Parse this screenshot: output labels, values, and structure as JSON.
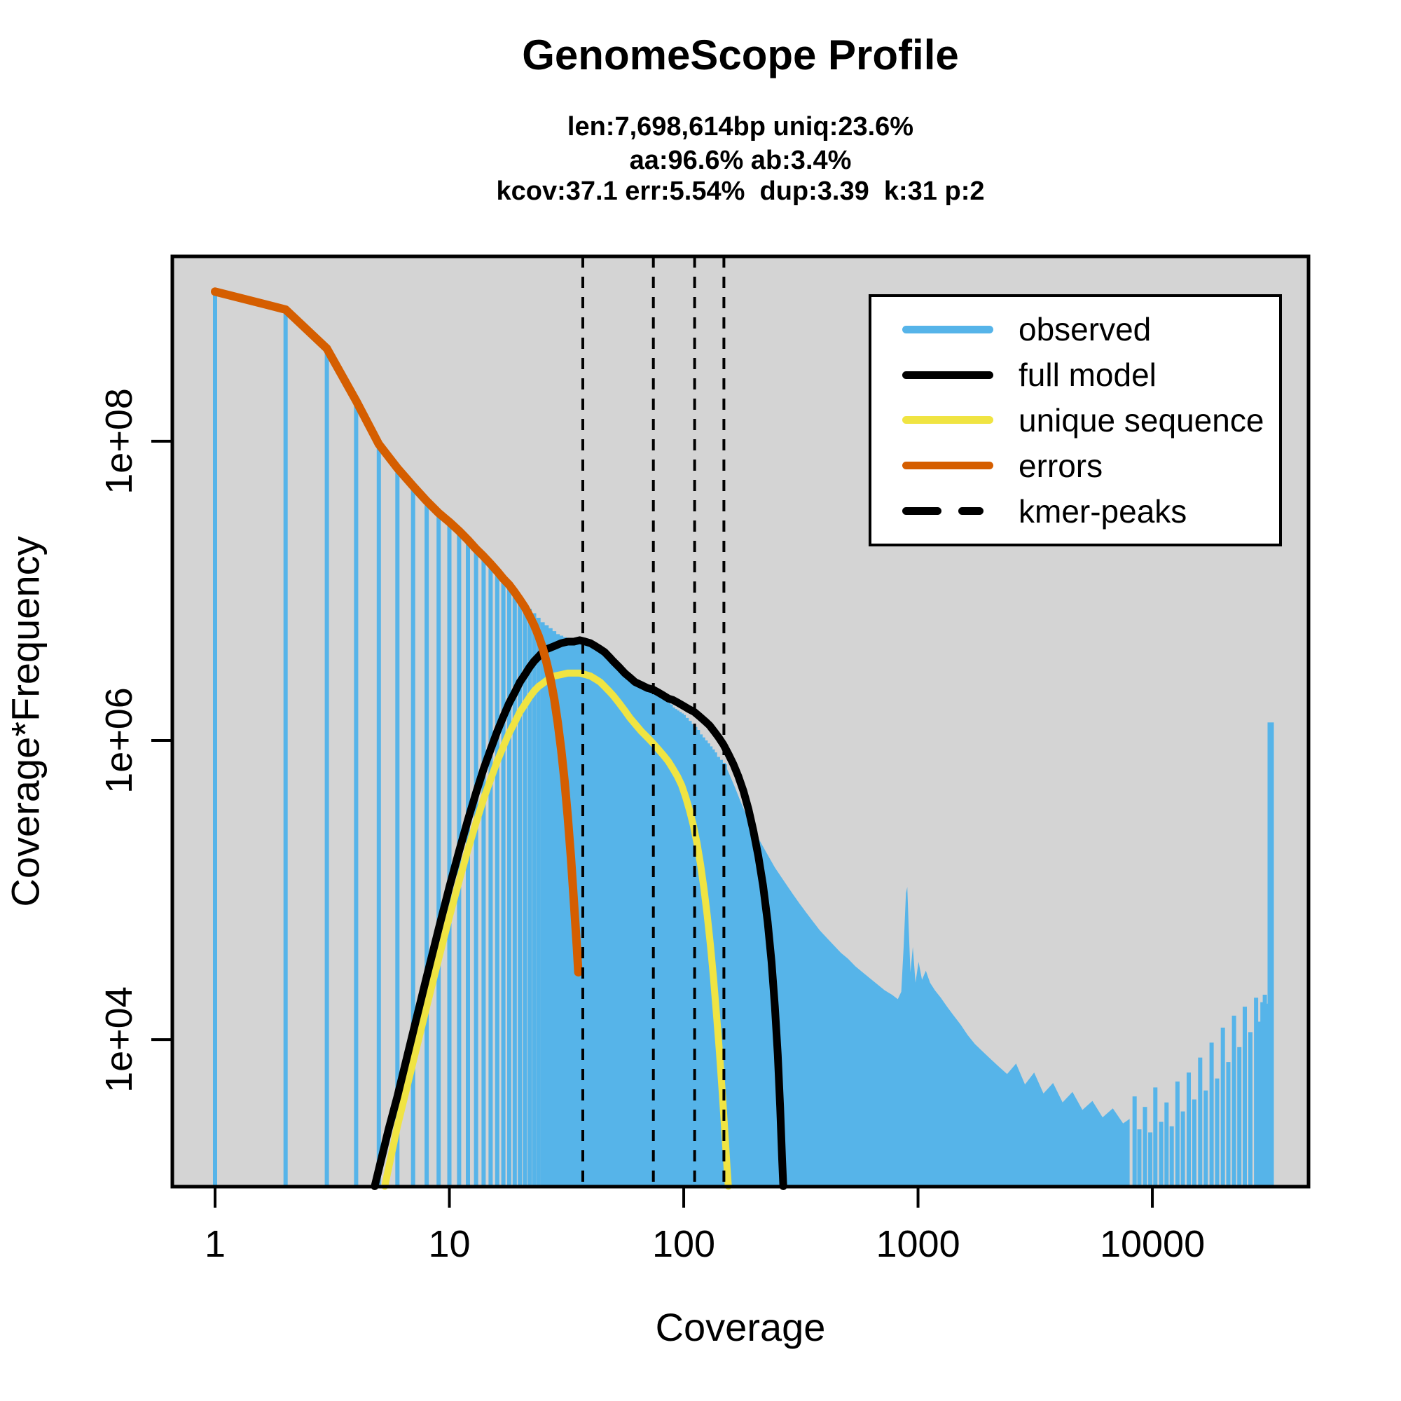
{
  "header": {
    "title": "GenomeScope Profile",
    "subtitle_line1": "len:7,698,614bp uniq:23.6%",
    "subtitle_line2": "aa:96.6% ab:3.4%",
    "subtitle_line3": "kcov:37.1 err:5.54%  dup:3.39  k:31 p:2"
  },
  "axes": {
    "x_label": "Coverage",
    "y_label": "Coverage*Frequency",
    "x_ticks": [
      {
        "value": 1,
        "label": "1"
      },
      {
        "value": 10,
        "label": "10"
      },
      {
        "value": 100,
        "label": "100"
      },
      {
        "value": 1000,
        "label": "1000"
      },
      {
        "value": 10000,
        "label": "10000"
      }
    ],
    "y_ticks": [
      {
        "value": 10000,
        "label": "1e+04"
      },
      {
        "value": 1000000,
        "label": "1e+06"
      },
      {
        "value": 100000000,
        "label": "1e+08"
      }
    ]
  },
  "legend": {
    "items": [
      {
        "label": "observed",
        "color": "#56B4E9",
        "style": "solid"
      },
      {
        "label": "full model",
        "color": "#000000",
        "style": "solid"
      },
      {
        "label": "unique sequence",
        "color": "#F0E442",
        "style": "solid"
      },
      {
        "label": "errors",
        "color": "#D55E00",
        "style": "solid"
      },
      {
        "label": "kmer-peaks",
        "color": "#000000",
        "style": "dashed"
      }
    ]
  },
  "colors": {
    "panel_bg": "#D4D4D4",
    "outer_bg": "#FFFFFF",
    "observed": "#56B4E9",
    "full_model": "#000000",
    "unique": "#F0E442",
    "errors": "#D55E00",
    "axis": "#000000"
  },
  "chart_data": {
    "type": "bar",
    "title": "GenomeScope Profile",
    "xlabel": "Coverage",
    "ylabel": "Coverage*Frequency",
    "x_scale": "log",
    "y_scale": "log",
    "x_domain": [
      0.657,
      46400
    ],
    "y_domain": [
      1040,
      1720000000
    ],
    "grid": false,
    "legend_position": "top-right",
    "kmer_peaks": [
      37.1,
      74.2,
      111.3,
      148.4
    ],
    "model_stats": {
      "kcov": 37.1,
      "err_pct": 5.54,
      "dup": 3.39,
      "k": 31,
      "p": 2,
      "len_bp": 7698614,
      "uniq_pct": 23.6,
      "aa_pct": 96.6,
      "ab_pct": 3.4
    },
    "observed_bars": [
      [
        1,
        9.0
      ],
      [
        2,
        8.88
      ],
      [
        3,
        8.62
      ],
      [
        4,
        8.27
      ],
      [
        5,
        7.97
      ],
      [
        6,
        7.81
      ],
      [
        7,
        7.69
      ],
      [
        8,
        7.58
      ],
      [
        9,
        7.51
      ],
      [
        10,
        7.45
      ],
      [
        11,
        7.39
      ],
      [
        12,
        7.33
      ],
      [
        13,
        7.27
      ],
      [
        14,
        7.22
      ],
      [
        15,
        7.17
      ],
      [
        16,
        7.12
      ],
      [
        17,
        7.07
      ],
      [
        18,
        7.03
      ],
      [
        19,
        6.99
      ],
      [
        20,
        6.95
      ],
      [
        21,
        6.91
      ],
      [
        22,
        6.88
      ],
      [
        23,
        6.85
      ],
      [
        24,
        6.82
      ],
      [
        25,
        6.79
      ],
      [
        26,
        6.77
      ],
      [
        27,
        6.75
      ],
      [
        28,
        6.73
      ],
      [
        29,
        6.71
      ],
      [
        30,
        6.7
      ],
      [
        31,
        6.69
      ],
      [
        32,
        6.68
      ],
      [
        33,
        6.68
      ],
      [
        34,
        6.67
      ],
      [
        35,
        6.67
      ],
      [
        36,
        6.67
      ],
      [
        37,
        6.67
      ],
      [
        38,
        6.67
      ],
      [
        39,
        6.66
      ],
      [
        40,
        6.66
      ],
      [
        41,
        6.65
      ],
      [
        42,
        6.64
      ],
      [
        43,
        6.63
      ],
      [
        44,
        6.62
      ],
      [
        45,
        6.6
      ],
      [
        46,
        6.59
      ],
      [
        47,
        6.57
      ],
      [
        48,
        6.56
      ],
      [
        49,
        6.54
      ],
      [
        50,
        6.53
      ],
      [
        51,
        6.51
      ],
      [
        52,
        6.5
      ],
      [
        53,
        6.48
      ],
      [
        54,
        6.47
      ],
      [
        55,
        6.46
      ],
      [
        56,
        6.44
      ],
      [
        57,
        6.43
      ],
      [
        58,
        6.42
      ],
      [
        59,
        6.41
      ],
      [
        60,
        6.4
      ],
      [
        62,
        6.38
      ],
      [
        64,
        6.37
      ],
      [
        66,
        6.36
      ],
      [
        68,
        6.35
      ],
      [
        70,
        6.34
      ],
      [
        72,
        6.34
      ],
      [
        74,
        6.33
      ],
      [
        76,
        6.31
      ],
      [
        78,
        6.3
      ],
      [
        80,
        6.29
      ],
      [
        82,
        6.27
      ],
      [
        84,
        6.26
      ],
      [
        86,
        6.25
      ],
      [
        88,
        6.24
      ],
      [
        90,
        6.22
      ],
      [
        92,
        6.21
      ],
      [
        94,
        6.2
      ],
      [
        96,
        6.19
      ],
      [
        98,
        6.18
      ],
      [
        100,
        6.17
      ],
      [
        103,
        6.15
      ],
      [
        106,
        6.13
      ],
      [
        109,
        6.11
      ],
      [
        112,
        6.09
      ],
      [
        115,
        6.07
      ],
      [
        118,
        6.04
      ],
      [
        121,
        6.02
      ],
      [
        124,
        6.0
      ],
      [
        127,
        5.98
      ],
      [
        130,
        5.96
      ],
      [
        133,
        5.94
      ],
      [
        136,
        5.92
      ],
      [
        140,
        5.89
      ],
      [
        144,
        5.87
      ],
      [
        148,
        5.85
      ],
      [
        150,
        5.84
      ]
    ],
    "observed_tail": [
      [
        150,
        5.84
      ],
      [
        158,
        5.76
      ],
      [
        166,
        5.68
      ],
      [
        175,
        5.59
      ],
      [
        185,
        5.5
      ],
      [
        195,
        5.43
      ],
      [
        206,
        5.36
      ],
      [
        218,
        5.29
      ],
      [
        231,
        5.22
      ],
      [
        245,
        5.15
      ],
      [
        260,
        5.09
      ],
      [
        276,
        5.03
      ],
      [
        293,
        4.97
      ],
      [
        312,
        4.91
      ],
      [
        333,
        4.85
      ],
      [
        356,
        4.79
      ],
      [
        381,
        4.73
      ],
      [
        408,
        4.68
      ],
      [
        437,
        4.63
      ],
      [
        469,
        4.58
      ],
      [
        503,
        4.54
      ],
      [
        540,
        4.49
      ],
      [
        580,
        4.45
      ],
      [
        623,
        4.41
      ],
      [
        670,
        4.37
      ],
      [
        720,
        4.33
      ],
      [
        774,
        4.3
      ],
      [
        820,
        4.27
      ],
      [
        848,
        4.32
      ],
      [
        868,
        4.62
      ],
      [
        888,
        4.98
      ],
      [
        900,
        5.02
      ],
      [
        912,
        4.75
      ],
      [
        928,
        4.45
      ],
      [
        950,
        4.62
      ],
      [
        975,
        4.38
      ],
      [
        1005,
        4.52
      ],
      [
        1040,
        4.4
      ],
      [
        1080,
        4.46
      ],
      [
        1125,
        4.38
      ],
      [
        1180,
        4.33
      ],
      [
        1250,
        4.28
      ],
      [
        1330,
        4.22
      ],
      [
        1420,
        4.16
      ],
      [
        1520,
        4.1
      ],
      [
        1630,
        4.03
      ],
      [
        1750,
        3.97
      ],
      [
        1890,
        3.92
      ],
      [
        2040,
        3.87
      ],
      [
        2210,
        3.82
      ],
      [
        2400,
        3.77
      ],
      [
        2620,
        3.84
      ],
      [
        2860,
        3.7
      ],
      [
        3130,
        3.78
      ],
      [
        3430,
        3.64
      ],
      [
        3770,
        3.71
      ],
      [
        4140,
        3.58
      ],
      [
        4560,
        3.65
      ],
      [
        5030,
        3.53
      ],
      [
        5550,
        3.59
      ],
      [
        6130,
        3.48
      ],
      [
        6780,
        3.54
      ],
      [
        7500,
        3.44
      ],
      [
        8000,
        3.47
      ]
    ],
    "observed_sparse_bars": [
      [
        8400,
        3.62
      ],
      [
        8800,
        3.4
      ],
      [
        9300,
        3.55
      ],
      [
        9800,
        3.38
      ],
      [
        10300,
        3.68
      ],
      [
        10900,
        3.45
      ],
      [
        11500,
        3.58
      ],
      [
        12100,
        3.42
      ],
      [
        12800,
        3.72
      ],
      [
        13500,
        3.52
      ],
      [
        14300,
        3.78
      ],
      [
        15100,
        3.6
      ],
      [
        16000,
        3.88
      ],
      [
        16900,
        3.66
      ],
      [
        17900,
        3.98
      ],
      [
        18900,
        3.74
      ],
      [
        20000,
        4.08
      ],
      [
        21100,
        3.85
      ],
      [
        22300,
        4.16
      ],
      [
        23500,
        3.95
      ],
      [
        24800,
        4.22
      ],
      [
        26200,
        4.05
      ],
      [
        27700,
        4.28
      ],
      [
        28700,
        4.12
      ],
      [
        29500,
        4.25
      ],
      [
        30200,
        4.3
      ],
      [
        30800,
        4.24
      ]
    ],
    "observed_spike": {
      "coverage": 32000,
      "log10_value": 6.12
    },
    "full_model": [
      [
        4.8,
        3.02
      ],
      [
        5.5,
        3.4
      ],
      [
        6,
        3.62
      ],
      [
        7,
        4.05
      ],
      [
        8,
        4.42
      ],
      [
        9,
        4.74
      ],
      [
        10,
        5.02
      ],
      [
        11,
        5.26
      ],
      [
        12,
        5.47
      ],
      [
        13,
        5.65
      ],
      [
        14,
        5.81
      ],
      [
        15,
        5.94
      ],
      [
        16,
        6.06
      ],
      [
        17,
        6.16
      ],
      [
        18,
        6.25
      ],
      [
        19,
        6.32
      ],
      [
        20,
        6.39
      ],
      [
        21,
        6.44
      ],
      [
        22,
        6.49
      ],
      [
        23,
        6.53
      ],
      [
        24,
        6.56
      ],
      [
        25,
        6.59
      ],
      [
        26,
        6.61
      ],
      [
        27,
        6.62
      ],
      [
        28,
        6.63
      ],
      [
        30,
        6.65
      ],
      [
        32,
        6.66
      ],
      [
        34,
        6.66
      ],
      [
        36,
        6.67
      ],
      [
        38,
        6.66
      ],
      [
        40,
        6.65
      ],
      [
        42,
        6.63
      ],
      [
        44,
        6.61
      ],
      [
        46,
        6.59
      ],
      [
        48,
        6.56
      ],
      [
        50,
        6.53
      ],
      [
        53,
        6.49
      ],
      [
        56,
        6.45
      ],
      [
        59,
        6.42
      ],
      [
        62,
        6.39
      ],
      [
        66,
        6.37
      ],
      [
        70,
        6.35
      ],
      [
        74,
        6.34
      ],
      [
        78,
        6.32
      ],
      [
        82,
        6.3
      ],
      [
        86,
        6.28
      ],
      [
        90,
        6.27
      ],
      [
        95,
        6.25
      ],
      [
        100,
        6.23
      ],
      [
        105,
        6.21
      ],
      [
        111,
        6.19
      ],
      [
        117,
        6.16
      ],
      [
        123,
        6.13
      ],
      [
        129,
        6.1
      ],
      [
        135,
        6.06
      ],
      [
        141,
        6.02
      ],
      [
        148,
        5.97
      ],
      [
        155,
        5.91
      ],
      [
        163,
        5.84
      ],
      [
        171,
        5.76
      ],
      [
        180,
        5.66
      ],
      [
        189,
        5.54
      ],
      [
        198,
        5.4
      ],
      [
        208,
        5.23
      ],
      [
        218,
        5.03
      ],
      [
        228,
        4.79
      ],
      [
        237,
        4.52
      ],
      [
        245,
        4.22
      ],
      [
        252,
        3.9
      ],
      [
        258,
        3.55
      ],
      [
        263,
        3.2
      ],
      [
        266,
        3.02
      ]
    ],
    "unique_sequence": [
      [
        5.3,
        3.02
      ],
      [
        6,
        3.42
      ],
      [
        7,
        3.85
      ],
      [
        8,
        4.22
      ],
      [
        9,
        4.54
      ],
      [
        10,
        4.82
      ],
      [
        11,
        5.06
      ],
      [
        12,
        5.27
      ],
      [
        13,
        5.45
      ],
      [
        14,
        5.61
      ],
      [
        15,
        5.74
      ],
      [
        16,
        5.86
      ],
      [
        17,
        5.96
      ],
      [
        18,
        6.05
      ],
      [
        19,
        6.12
      ],
      [
        20,
        6.19
      ],
      [
        21,
        6.24
      ],
      [
        22,
        6.29
      ],
      [
        23,
        6.33
      ],
      [
        24,
        6.36
      ],
      [
        25,
        6.38
      ],
      [
        26,
        6.4
      ],
      [
        27,
        6.42
      ],
      [
        28,
        6.43
      ],
      [
        30,
        6.44
      ],
      [
        32,
        6.45
      ],
      [
        34,
        6.45
      ],
      [
        36,
        6.45
      ],
      [
        38,
        6.44
      ],
      [
        40,
        6.43
      ],
      [
        42,
        6.41
      ],
      [
        44,
        6.39
      ],
      [
        46,
        6.36
      ],
      [
        48,
        6.33
      ],
      [
        50,
        6.3
      ],
      [
        53,
        6.25
      ],
      [
        56,
        6.2
      ],
      [
        59,
        6.15
      ],
      [
        62,
        6.11
      ],
      [
        66,
        6.06
      ],
      [
        70,
        6.02
      ],
      [
        74,
        5.98
      ],
      [
        78,
        5.94
      ],
      [
        82,
        5.9
      ],
      [
        86,
        5.86
      ],
      [
        90,
        5.81
      ],
      [
        94,
        5.76
      ],
      [
        98,
        5.7
      ],
      [
        102,
        5.62
      ],
      [
        106,
        5.53
      ],
      [
        110,
        5.43
      ],
      [
        114,
        5.31
      ],
      [
        118,
        5.17
      ],
      [
        122,
        5.01
      ],
      [
        126,
        4.83
      ],
      [
        130,
        4.63
      ],
      [
        134,
        4.41
      ],
      [
        138,
        4.17
      ],
      [
        142,
        3.92
      ],
      [
        146,
        3.65
      ],
      [
        150,
        3.37
      ],
      [
        153,
        3.15
      ],
      [
        155,
        3.02
      ]
    ],
    "errors": [
      [
        1,
        9.0
      ],
      [
        2,
        8.88
      ],
      [
        3,
        8.62
      ],
      [
        4,
        8.27
      ],
      [
        5,
        7.98
      ],
      [
        6,
        7.82
      ],
      [
        7,
        7.7
      ],
      [
        8,
        7.6
      ],
      [
        9,
        7.52
      ],
      [
        10,
        7.46
      ],
      [
        11,
        7.4
      ],
      [
        12,
        7.34
      ],
      [
        13,
        7.28
      ],
      [
        14,
        7.23
      ],
      [
        15,
        7.18
      ],
      [
        16,
        7.13
      ],
      [
        17,
        7.08
      ],
      [
        18,
        7.04
      ],
      [
        19,
        6.99
      ],
      [
        20,
        6.94
      ],
      [
        21,
        6.89
      ],
      [
        22,
        6.83
      ],
      [
        23,
        6.77
      ],
      [
        24,
        6.7
      ],
      [
        25,
        6.62
      ],
      [
        26,
        6.52
      ],
      [
        27,
        6.41
      ],
      [
        28,
        6.28
      ],
      [
        29,
        6.12
      ],
      [
        30,
        5.94
      ],
      [
        31,
        5.73
      ],
      [
        32,
        5.49
      ],
      [
        33,
        5.22
      ],
      [
        34,
        4.92
      ],
      [
        35,
        4.62
      ],
      [
        35.5,
        4.45
      ]
    ]
  }
}
